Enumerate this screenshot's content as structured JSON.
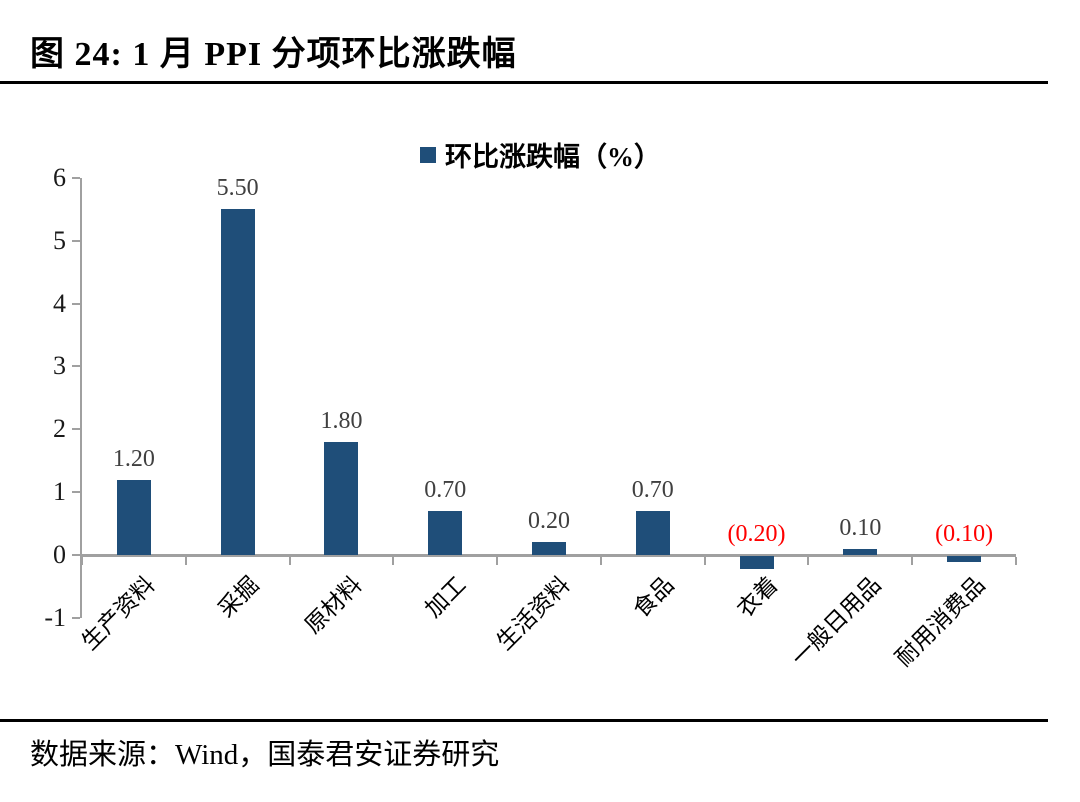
{
  "figure": {
    "title": "图 24:  1 月 PPI 分项环比涨跌幅",
    "source": "数据来源：Wind，国泰君安证券研究"
  },
  "legend": {
    "label": "环比涨跌幅（%）"
  },
  "colors": {
    "bar": "#1F4E79",
    "axis": "#A0A0A0",
    "value_label": "#404040",
    "negative_label": "#FF0000",
    "rule": "#000000"
  },
  "chart_data": {
    "type": "bar",
    "title": "1 月 PPI 分项环比涨跌幅",
    "legend_entries": [
      "环比涨跌幅（%）"
    ],
    "legend_position": "top-center",
    "categories": [
      "生产资料",
      "采掘",
      "原材料",
      "加工",
      "生活资料",
      "食品",
      "衣着",
      "一般日用品",
      "耐用消费品"
    ],
    "values": [
      1.2,
      5.5,
      1.8,
      0.7,
      0.2,
      0.7,
      -0.2,
      0.1,
      -0.1
    ],
    "value_labels": [
      "1.20",
      "5.50",
      "1.80",
      "0.70",
      "0.20",
      "0.70",
      "(0.20)",
      "0.10",
      "(0.10)"
    ],
    "xlabel": "",
    "ylabel": "",
    "ylim": [
      -1,
      6
    ],
    "y_ticks": [
      6,
      5,
      4,
      3,
      2,
      1,
      0,
      -1
    ],
    "grid": false
  }
}
